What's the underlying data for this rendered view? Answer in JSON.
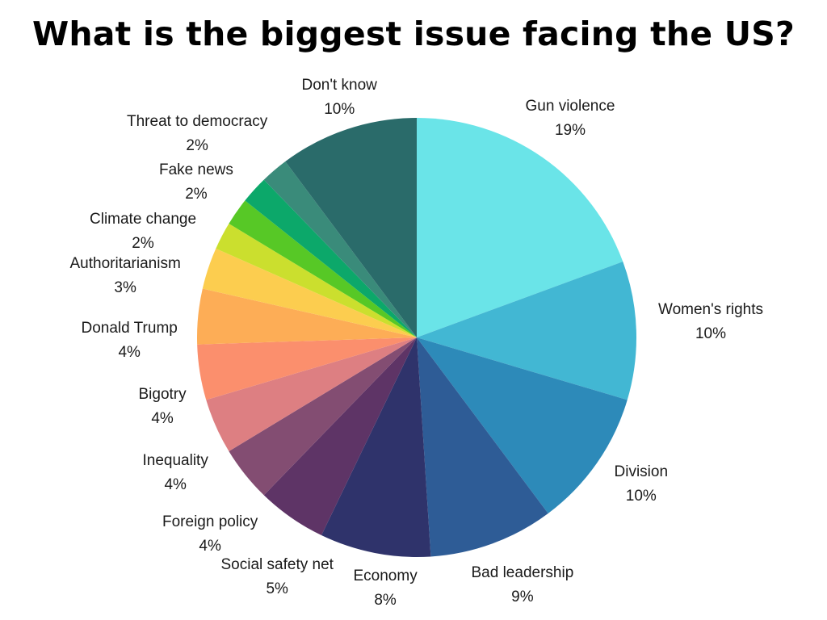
{
  "chart_data": {
    "type": "pie",
    "title": "What is the biggest issue facing the US?",
    "start": "12 o'clock",
    "direction": "clockwise",
    "slices": [
      {
        "label": "Gun violence",
        "value": 19,
        "display": "19%",
        "color": "#6ae4e8"
      },
      {
        "label": "Women's rights",
        "value": 10,
        "display": "10%",
        "color": "#42b7d3"
      },
      {
        "label": "Division",
        "value": 10,
        "display": "10%",
        "color": "#2d8ab9"
      },
      {
        "label": "Bad leadership",
        "value": 9,
        "display": "9%",
        "color": "#2e5c96"
      },
      {
        "label": "Economy",
        "value": 8,
        "display": "8%",
        "color": "#2f336b"
      },
      {
        "label": "Social safety net",
        "value": 5,
        "display": "5%",
        "color": "#5e3466"
      },
      {
        "label": "Foreign policy",
        "value": 4,
        "display": "4%",
        "color": "#834d72"
      },
      {
        "label": "Inequality",
        "value": 4,
        "display": "4%",
        "color": "#dd7f82"
      },
      {
        "label": "Bigotry",
        "value": 4,
        "display": "4%",
        "color": "#fb8f6d"
      },
      {
        "label": "Donald Trump",
        "value": 4,
        "display": "4%",
        "color": "#fdad56"
      },
      {
        "label": "Authoritarianism",
        "value": 3,
        "display": "3%",
        "color": "#fccd4f"
      },
      {
        "label": "Climate change",
        "value": 2,
        "display": "2%",
        "color": "#cbdf2e"
      },
      {
        "label": "Climate change",
        "value": 2,
        "display": "2%",
        "color": "#57c826"
      },
      {
        "label": "Fake news",
        "value": 2,
        "display": "2%",
        "color": "#0ca86a"
      },
      {
        "label": "Threat to democracy",
        "value": 2,
        "display": "2%",
        "color": "#3a8b7a"
      },
      {
        "label": "Don't know",
        "value": 10,
        "display": "10%",
        "color": "#2a6b6a"
      }
    ]
  }
}
